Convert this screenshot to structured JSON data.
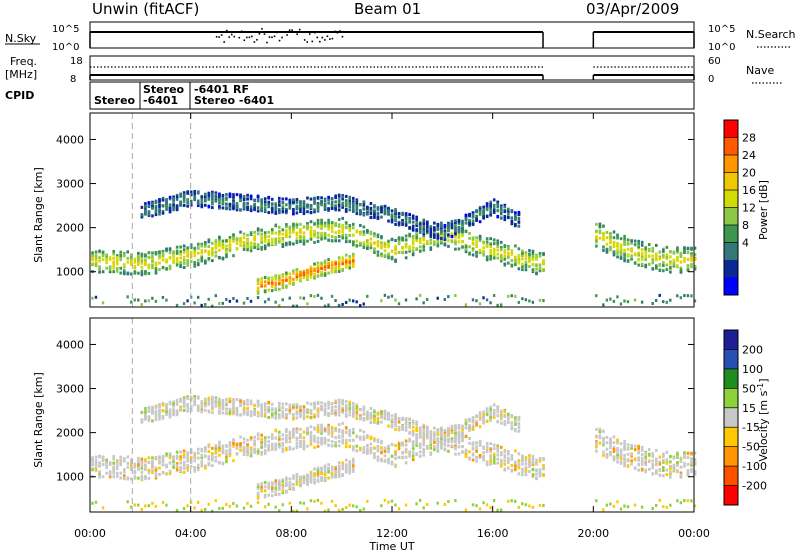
{
  "header": {
    "station": "Unwin (fitACF)",
    "beam": "Beam 01",
    "date": "03/Apr/2009"
  },
  "nsky_panel": {
    "label": "N.Sky",
    "ticks": [
      "10^5",
      "10^0"
    ],
    "right_label": "N.Search",
    "right_ticks": [
      "10^5",
      "10^0"
    ]
  },
  "freq_panel": {
    "label_line1": "Freq.",
    "label_line2": "[MHz]",
    "ticks": [
      "18",
      "8"
    ],
    "right_label": "Nave",
    "right_ticks": [
      "60",
      "0"
    ]
  },
  "cpid_panel": {
    "label": "CPID",
    "entries": [
      "Stereo",
      "Stereo",
      "-6401",
      "-6401 RF",
      "Stereo -6401"
    ]
  },
  "x_axis": {
    "label": "Time UT",
    "ticks": [
      "00:00",
      "04:00",
      "08:00",
      "12:00",
      "16:00",
      "20:00",
      "00:00"
    ]
  },
  "power_colorbar": {
    "label": "Power [dB]",
    "ticks": [
      "28",
      "24",
      "20",
      "16",
      "12",
      "8",
      "4"
    ],
    "colors": [
      "#ff0000",
      "#ff5a00",
      "#ff9600",
      "#f0c800",
      "#d2dc00",
      "#8cc846",
      "#3c9650",
      "#327878",
      "#0a2896",
      "#0000ff"
    ]
  },
  "velocity_colorbar": {
    "label": "Velocity [m s",
    "label_sup": "-1",
    "label_end": "]",
    "ticks": [
      "200",
      "100",
      "50",
      "15",
      "-15",
      "-50",
      "-100",
      "-200"
    ],
    "colors": [
      "#1e1e96",
      "#2850b4",
      "#1e8c1e",
      "#8cd23c",
      "#c8c8c8",
      "#ffc800",
      "#ff9600",
      "#ff5000",
      "#ff0000"
    ]
  },
  "chart_data": [
    {
      "type": "heatmap",
      "title": "Beam 01",
      "xlabel": "Time UT",
      "ylabel": "Slant Range [km]",
      "xlim": [
        "00:00",
        "24:00"
      ],
      "ylim": [
        200,
        4600
      ],
      "yticks": [
        1000,
        2000,
        3000,
        4000
      ],
      "quantity": "Power [dB]",
      "clim": [
        0,
        32
      ],
      "data_gap": [
        "18:00",
        "20:00"
      ],
      "features": [
        {
          "name": "band",
          "t": [
            0,
            2,
            4,
            6,
            8,
            10,
            12,
            14,
            16,
            18
          ],
          "range": [
            1300,
            1200,
            1400,
            1700,
            1900,
            2000,
            1500,
            1900,
            1500,
            1200
          ],
          "power": 20
        },
        {
          "name": "upper",
          "t": [
            2,
            4,
            6,
            8,
            10,
            12,
            14,
            16,
            17
          ],
          "range": [
            2400,
            2700,
            2600,
            2500,
            2600,
            2300,
            1900,
            2500,
            2200
          ],
          "power": 8
        },
        {
          "name": "strong",
          "t": [
            6.5,
            7.5,
            8.5,
            9.5,
            10.5
          ],
          "range": [
            700,
            800,
            1000,
            1150,
            1300
          ],
          "power": 28
        },
        {
          "name": "band-late",
          "t": [
            20,
            21,
            22,
            23,
            24
          ],
          "range": [
            1900,
            1600,
            1400,
            1300,
            1300
          ],
          "power": 20
        }
      ]
    },
    {
      "type": "heatmap",
      "title": "",
      "xlabel": "Time UT",
      "ylabel": "Slant Range [km]",
      "xlim": [
        "00:00",
        "24:00"
      ],
      "ylim": [
        200,
        4600
      ],
      "yticks": [
        1000,
        2000,
        3000,
        4000
      ],
      "quantity": "Velocity [m s-1]",
      "clim": [
        -200,
        200
      ],
      "data_gap": [
        "18:00",
        "20:00"
      ]
    }
  ]
}
